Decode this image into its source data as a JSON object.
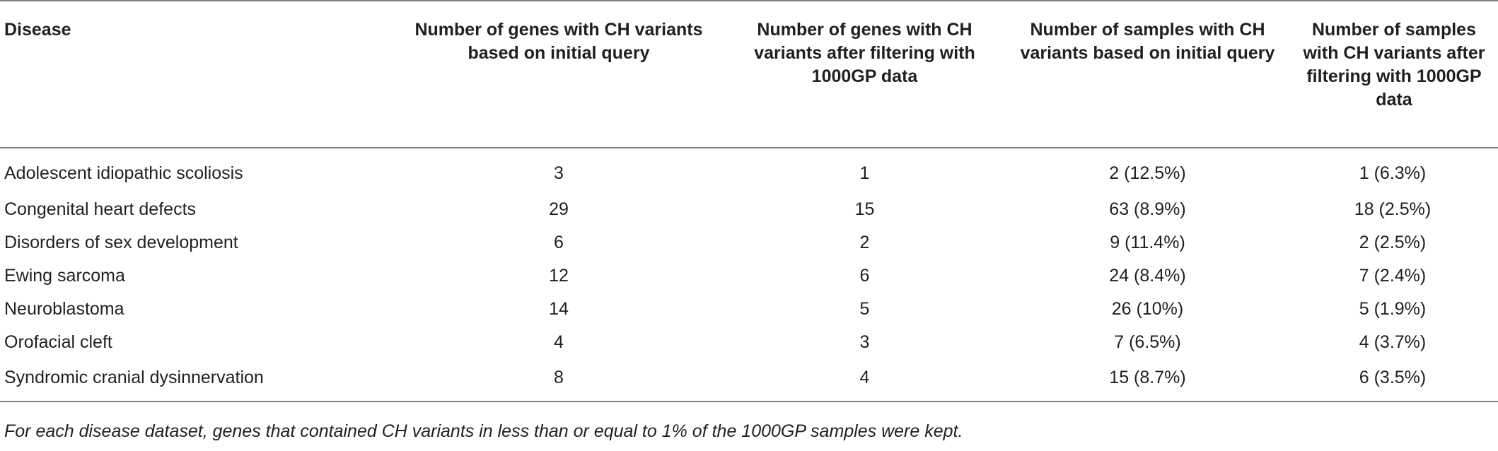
{
  "table": {
    "headers": [
      "Disease",
      "Number of genes with CH variants based on initial query",
      "Number of genes with CH variants after filtering with 1000GP data",
      "Number of samples with CH variants based on initial query",
      "Number of samples with CH variants after filtering with 1000GP data"
    ],
    "rows": [
      [
        "Adolescent idiopathic scoliosis",
        "3",
        "1",
        "2 (12.5%)",
        "1 (6.3%)"
      ],
      [
        "Congenital heart defects",
        "29",
        "15",
        "63 (8.9%)",
        "18 (2.5%)"
      ],
      [
        "Disorders of sex development",
        "6",
        "2",
        "9 (11.4%)",
        "2 (2.5%)"
      ],
      [
        "Ewing sarcoma",
        "12",
        "6",
        "24 (8.4%)",
        "7 (2.4%)"
      ],
      [
        "Neuroblastoma",
        "14",
        "5",
        "26 (10%)",
        "5 (1.9%)"
      ],
      [
        "Orofacial cleft",
        "4",
        "3",
        "7 (6.5%)",
        "4 (3.7%)"
      ],
      [
        "Syndromic cranial dysinnervation",
        "8",
        "4",
        "15 (8.7%)",
        "6 (3.5%)"
      ]
    ]
  },
  "footnote": "For each disease dataset, genes that contained CH variants in less than or equal to 1% of the 1000GP samples were kept.",
  "colors": {
    "text": "#231f20",
    "rule": "#808285"
  }
}
